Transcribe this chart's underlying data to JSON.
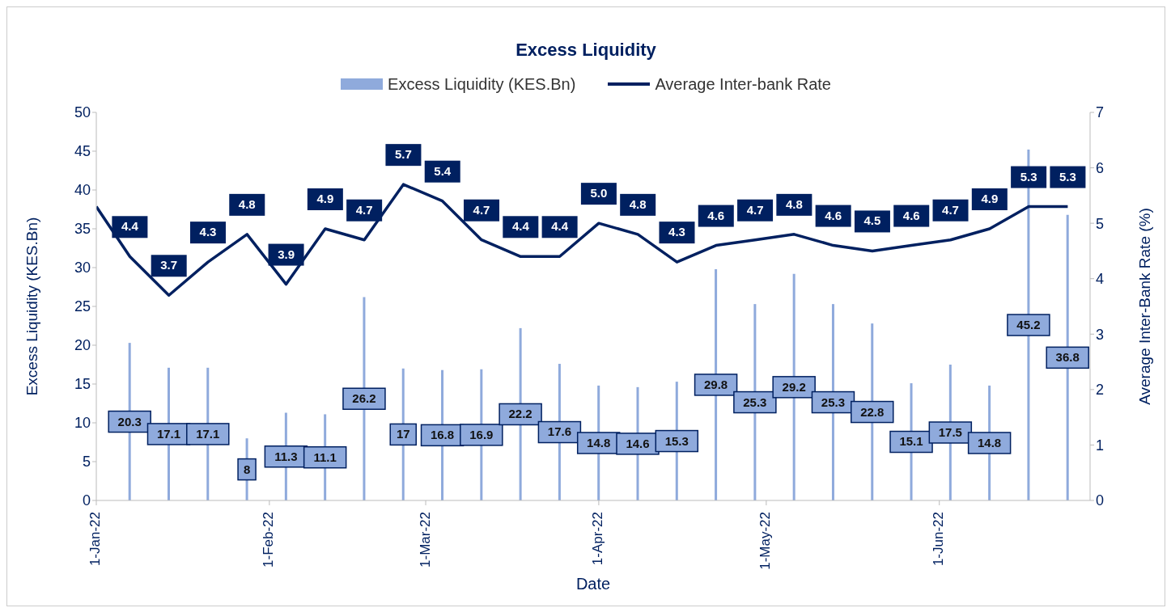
{
  "chart_data": {
    "type": "bar",
    "title": "Excess Liquidity",
    "xlabel": "Date",
    "ylabel": "Excess Liquidity (KES.Bn)",
    "y2label": "Average Inter-Bank Rate (%)",
    "legend": "top",
    "grid": false,
    "xlim": [
      "2022-01-01",
      "2022-06-28"
    ],
    "xticks": [
      {
        "value": "2022-01-01",
        "label": "1-Jan-22"
      },
      {
        "value": "2022-02-01",
        "label": "1-Feb-22"
      },
      {
        "value": "2022-03-01",
        "label": "1-Mar-22"
      },
      {
        "value": "2022-04-01",
        "label": "1-Apr-22"
      },
      {
        "value": "2022-05-01",
        "label": "1-May-22"
      },
      {
        "value": "2022-06-01",
        "label": "1-Jun-22"
      }
    ],
    "ylim": [
      0,
      50
    ],
    "yticks": [
      0,
      5,
      10,
      15,
      20,
      25,
      30,
      35,
      40,
      45,
      50
    ],
    "y2lim": [
      0,
      7
    ],
    "y2ticks": [
      0,
      1,
      2,
      3,
      4,
      5,
      6,
      7
    ],
    "series": [
      {
        "name": "Excess Liquidity (KES.Bn)",
        "color": "#8faadc",
        "x": [
          "2022-01-07",
          "2022-01-14",
          "2022-01-21",
          "2022-01-28",
          "2022-02-04",
          "2022-02-11",
          "2022-02-18",
          "2022-02-25",
          "2022-03-04",
          "2022-03-11",
          "2022-03-18",
          "2022-03-25",
          "2022-04-01",
          "2022-04-08",
          "2022-04-15",
          "2022-04-22",
          "2022-04-29",
          "2022-05-06",
          "2022-05-13",
          "2022-05-20",
          "2022-05-27",
          "2022-06-03",
          "2022-06-10",
          "2022-06-17",
          "2022-06-24"
        ],
        "values": [
          20.3,
          17.1,
          17.1,
          8,
          11.3,
          11.1,
          26.2,
          17,
          16.8,
          16.9,
          22.2,
          17.6,
          14.8,
          14.6,
          15.3,
          29.8,
          25.3,
          29.2,
          25.3,
          22.8,
          15.1,
          17.5,
          14.8,
          45.2,
          36.8
        ],
        "value_labels": [
          "20.3",
          "17.1",
          "17.1",
          "8",
          "11.3",
          "11.1",
          "26.2",
          "17",
          "16.8",
          "16.9",
          "22.2",
          "17.6",
          "14.8",
          "14.6",
          "15.3",
          "29.8",
          "25.3",
          "29.2",
          "25.3",
          "22.8",
          "15.1",
          "17.5",
          "14.8",
          "45.2",
          "36.8"
        ]
      },
      {
        "name": "Average Inter-bank Rate",
        "type": "line",
        "axis": "y2",
        "color": "#002060",
        "x": [
          "2022-01-01",
          "2022-01-07",
          "2022-01-14",
          "2022-01-21",
          "2022-01-28",
          "2022-02-04",
          "2022-02-11",
          "2022-02-18",
          "2022-02-25",
          "2022-03-04",
          "2022-03-11",
          "2022-03-18",
          "2022-03-25",
          "2022-04-01",
          "2022-04-08",
          "2022-04-15",
          "2022-04-22",
          "2022-04-29",
          "2022-05-06",
          "2022-05-13",
          "2022-05-20",
          "2022-05-27",
          "2022-06-03",
          "2022-06-10",
          "2022-06-17",
          "2022-06-24"
        ],
        "values": [
          5.3,
          4.4,
          3.7,
          4.3,
          4.8,
          3.9,
          4.9,
          4.7,
          5.7,
          5.4,
          4.7,
          4.4,
          4.4,
          5.0,
          4.8,
          4.3,
          4.6,
          4.7,
          4.8,
          4.6,
          4.5,
          4.6,
          4.7,
          4.9,
          5.3,
          5.3
        ],
        "value_labels": [
          null,
          "4.4",
          "3.7",
          "4.3",
          "4.8",
          "3.9",
          "4.9",
          "4.7",
          "5.7",
          "5.4",
          "4.7",
          "4.4",
          "4.4",
          "5.0",
          "4.8",
          "4.3",
          "4.6",
          "4.7",
          "4.8",
          "4.6",
          "4.5",
          "4.6",
          "4.7",
          "4.9",
          "5.3",
          "5.3"
        ]
      }
    ]
  }
}
